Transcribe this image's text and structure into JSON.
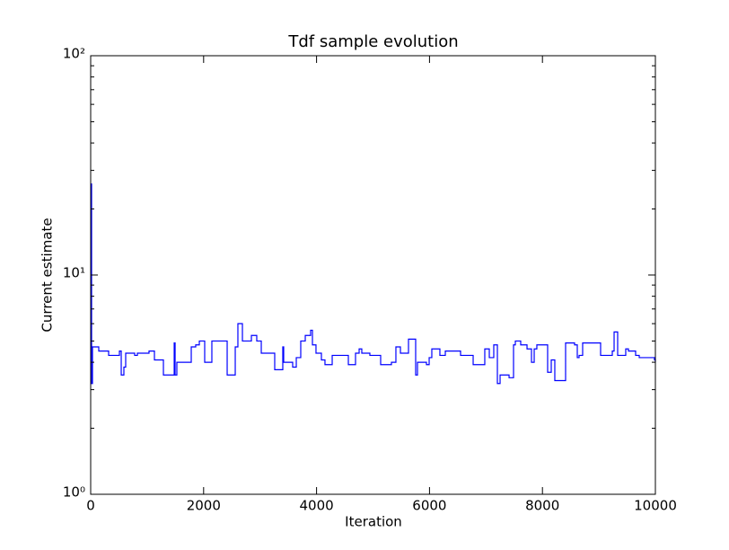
{
  "chart_data": {
    "type": "line",
    "title": "Tdf sample evolution",
    "x_label": "Iteration",
    "y_label": "Current estimate",
    "drawstyle": "steps-post",
    "y_scale": "log",
    "xlim": [
      0,
      10000
    ],
    "xticks": [
      0,
      2000,
      4000,
      6000,
      8000,
      10000
    ],
    "ylim": [
      1,
      100
    ],
    "yticks": [
      {
        "value": 1,
        "label": "10⁰"
      },
      {
        "value": 10,
        "label": "10¹"
      },
      {
        "value": 100,
        "label": "10²"
      }
    ],
    "series": [
      {
        "color": "#0000ff",
        "x": [
          0,
          16,
          32,
          143,
          318,
          509,
          541,
          588,
          620,
          779,
          827,
          1033,
          1129,
          1288,
          1479,
          1495,
          1526,
          1781,
          1860,
          1924,
          2019,
          2146,
          2417,
          2560,
          2607,
          2687,
          2846,
          2941,
          3021,
          3259,
          3402,
          3418,
          3577,
          3641,
          3720,
          3800,
          3895,
          3927,
          3990,
          4086,
          4149,
          4277,
          4563,
          4690,
          4754,
          4801,
          4944,
          5135,
          5326,
          5405,
          5485,
          5628,
          5755,
          5787,
          5946,
          5994,
          6041,
          6184,
          6280,
          6550,
          6773,
          6979,
          7059,
          7138,
          7202,
          7250,
          7409,
          7488,
          7520,
          7615,
          7727,
          7806,
          7854,
          7901,
          8092,
          8156,
          8219,
          8410,
          8569,
          8617,
          8649,
          8712,
          9030,
          9237,
          9269,
          9332,
          9475,
          9523,
          9650,
          9714,
          9984,
          10000
        ],
        "values": [
          26,
          3.2,
          4.7,
          4.5,
          4.3,
          4.5,
          3.5,
          3.8,
          4.4,
          4.3,
          4.4,
          4.5,
          4.1,
          3.5,
          4.9,
          3.5,
          4.0,
          4.7,
          4.8,
          5.0,
          4.0,
          5.0,
          3.5,
          4.7,
          6.0,
          5.0,
          5.3,
          5.0,
          4.4,
          3.7,
          4.7,
          4.0,
          3.8,
          4.2,
          5.0,
          5.3,
          5.6,
          4.8,
          4.4,
          4.1,
          3.9,
          4.3,
          3.9,
          4.4,
          4.6,
          4.4,
          4.3,
          3.9,
          4.0,
          4.7,
          4.4,
          5.1,
          3.5,
          4.0,
          3.9,
          4.2,
          4.6,
          4.3,
          4.5,
          4.3,
          3.9,
          4.6,
          4.2,
          4.8,
          3.2,
          3.5,
          3.4,
          4.8,
          5.0,
          4.8,
          4.6,
          4.0,
          4.6,
          4.8,
          3.6,
          4.1,
          3.3,
          4.9,
          4.8,
          4.2,
          4.3,
          4.9,
          4.3,
          4.5,
          5.5,
          4.3,
          4.6,
          4.5,
          4.3,
          4.2,
          4.1,
          4.0
        ]
      }
    ]
  }
}
